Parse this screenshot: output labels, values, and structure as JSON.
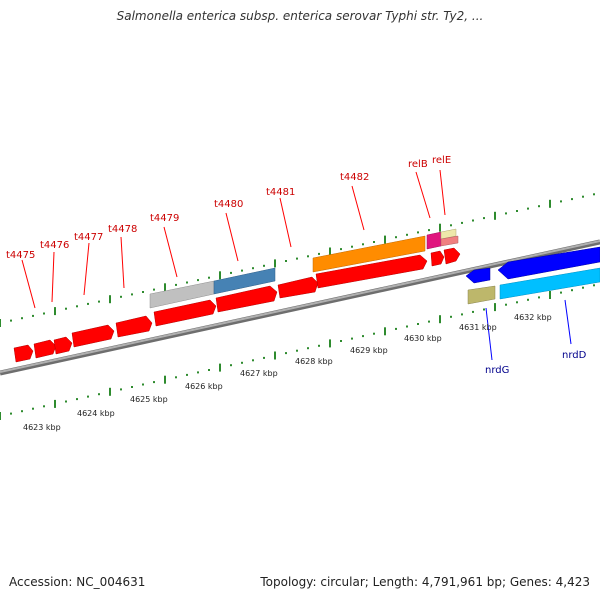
{
  "header": {
    "title": "Salmonella enterica subsp. enterica serovar Typhi str. Ty2, ..."
  },
  "footer": {
    "accession": "Accession: NC_004631",
    "topology": "Topology: circular; Length: 4,791,961 bp; Genes: 4,423"
  },
  "colors": {
    "forward_gene": "#ff0000",
    "reverse_gene": "#0000ff",
    "forward_label": "#cc0000",
    "reverse_label": "#00008b",
    "tick": "#2e8b2e",
    "backbone": "#8c8c8c"
  },
  "top_gene_labels": [
    "t4475",
    "t4476",
    "t4477",
    "t4478",
    "t4479",
    "t4480",
    "t4481",
    "t4482",
    "relB",
    "relE"
  ],
  "bottom_gene_labels": [
    "nrdG",
    "nrdD"
  ],
  "scale_labels": [
    "4623 kbp",
    "4624 kbp",
    "4625 kbp",
    "4626 kbp",
    "4627 kbp",
    "4628 kbp",
    "4629 kbp",
    "4630 kbp",
    "4631 kbp",
    "4632 kbp"
  ]
}
